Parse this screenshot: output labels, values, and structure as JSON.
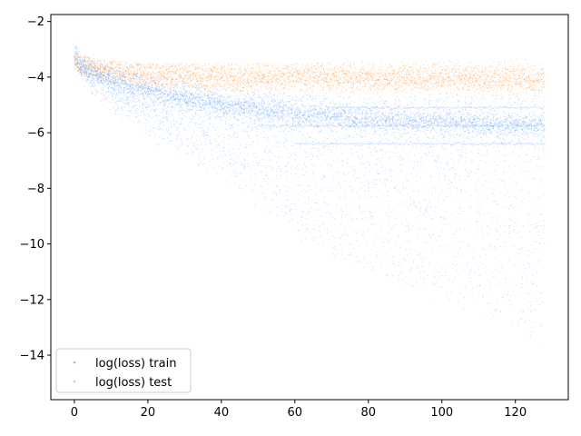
{
  "chart_data": {
    "type": "scatter",
    "title": "",
    "xlabel": "",
    "ylabel": "",
    "xlim": [
      -6.4,
      134.4
    ],
    "ylim": [
      -15.6,
      -1.75
    ],
    "xticks": [
      0,
      20,
      40,
      60,
      80,
      100,
      120
    ],
    "yticks": [
      -14,
      -12,
      -10,
      -8,
      -6,
      -4,
      -2
    ],
    "xtick_labels": [
      "0",
      "20",
      "40",
      "60",
      "80",
      "100",
      "120"
    ],
    "ytick_labels": [
      "−14",
      "−12",
      "−10",
      "−8",
      "−6",
      "−4",
      "−2"
    ],
    "grid": false,
    "legend_position": "lower-left",
    "series": [
      {
        "name": "log(loss) train",
        "color": "#1f77ff",
        "marker": "point",
        "points_per_epoch": 60,
        "epochs": [
          0,
          128
        ],
        "bands": [
          {
            "x": [
              0,
              2,
              5,
              10,
              20,
              40,
              60,
              80,
              100,
              128
            ],
            "center": [
              -3.1,
              -3.6,
              -3.8,
              -4.1,
              -4.5,
              -5.0,
              -5.3,
              -5.5,
              -5.6,
              -5.75
            ],
            "lower": [
              -3.3,
              -4.0,
              -4.5,
              -5.0,
              -6.0,
              -7.5,
              -9.5,
              -11.0,
              -12.0,
              -13.3
            ],
            "upper": [
              -2.4,
              -3.2,
              -3.4,
              -3.6,
              -3.9,
              -4.4,
              -4.6,
              -4.7,
              -4.7,
              -4.7
            ]
          }
        ],
        "lines": [
          {
            "y": -5.75,
            "from_x": 50,
            "to_x": 128
          },
          {
            "y": -5.1,
            "from_x": 70,
            "to_x": 128
          },
          {
            "y": -6.4,
            "from_x": 60,
            "to_x": 128
          }
        ]
      },
      {
        "name": "log(loss) test",
        "color": "#ff7f0e",
        "marker": "point",
        "points_per_epoch": 30,
        "epochs": [
          0,
          128
        ],
        "bands": [
          {
            "x": [
              0,
              2,
              5,
              10,
              20,
              40,
              60,
              80,
              100,
              128
            ],
            "center": [
              -3.4,
              -3.6,
              -3.7,
              -3.8,
              -3.9,
              -4.0,
              -4.0,
              -4.05,
              -4.05,
              -4.1
            ],
            "lower": [
              -3.7,
              -3.9,
              -4.1,
              -4.3,
              -4.4,
              -4.5,
              -4.6,
              -4.6,
              -4.7,
              -4.8
            ],
            "upper": [
              -3.0,
              -3.2,
              -3.3,
              -3.4,
              -3.5,
              -3.5,
              -3.5,
              -3.4,
              -3.4,
              -3.3
            ]
          }
        ]
      }
    ]
  }
}
